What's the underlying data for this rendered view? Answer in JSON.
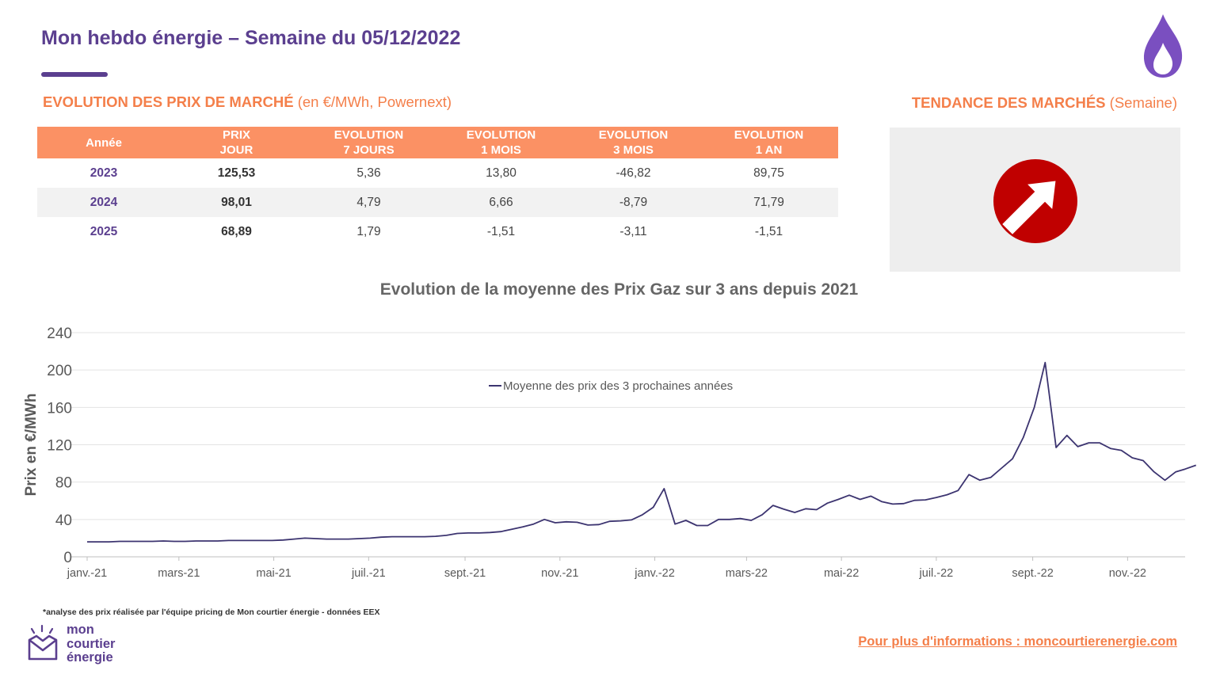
{
  "header": {
    "title": "Mon hebdo énergie – Semaine du 05/12/2022",
    "logo_icon": "flame-icon",
    "accent_color": "#5b3f8f"
  },
  "market_prices": {
    "heading": "EVOLUTION DES PRIX DE MARCHÉ",
    "heading_sub": "(en €/MWh, Powernext)",
    "columns": [
      {
        "line1": "Année",
        "line2": ""
      },
      {
        "line1": "PRIX",
        "line2": "JOUR"
      },
      {
        "line1": "EVOLUTION",
        "line2": "7 JOURS"
      },
      {
        "line1": "EVOLUTION",
        "line2": "1 MOIS"
      },
      {
        "line1": "EVOLUTION",
        "line2": "3 MOIS"
      },
      {
        "line1": "EVOLUTION",
        "line2": "1 AN"
      }
    ],
    "rows": [
      {
        "year": "2023",
        "prix": "125,53",
        "evo7": "5,36",
        "evo1m": "13,80",
        "evo3m": "-46,82",
        "evo1a": "89,75"
      },
      {
        "year": "2024",
        "prix": "98,01",
        "evo7": "4,79",
        "evo1m": "6,66",
        "evo3m": "-8,79",
        "evo1a": "71,79"
      },
      {
        "year": "2025",
        "prix": "68,89",
        "evo7": "1,79",
        "evo1m": "-1,51",
        "evo3m": "-3,11",
        "evo1a": "-1,51"
      }
    ],
    "header_color": "#fb9164"
  },
  "trend": {
    "heading": "TENDANCE DES MARCHÉS",
    "heading_sub": "(Semaine)",
    "icon": "up-right-arrow-icon",
    "direction": "up",
    "color": "#c00000"
  },
  "chart_data": {
    "type": "line",
    "title": "Evolution de la moyenne des Prix Gaz sur 3 ans depuis 2021",
    "ylabel": "Prix en €/MWh",
    "xlabel": "",
    "ylim": [
      0,
      240
    ],
    "yticks": [
      0,
      40,
      80,
      120,
      160,
      200,
      240
    ],
    "xlim": [
      "2021-01-01",
      "2022-12-08"
    ],
    "xticks": [
      {
        "date": "2021-01-01",
        "label": "janv.-21"
      },
      {
        "date": "2021-03-01",
        "label": "mars-21"
      },
      {
        "date": "2021-05-01",
        "label": "mai-21"
      },
      {
        "date": "2021-07-01",
        "label": "juil.-21"
      },
      {
        "date": "2021-09-01",
        "label": "sept.-21"
      },
      {
        "date": "2021-11-01",
        "label": "nov.-21"
      },
      {
        "date": "2022-01-01",
        "label": "janv.-22"
      },
      {
        "date": "2022-03-01",
        "label": "mars-22"
      },
      {
        "date": "2022-05-01",
        "label": "mai-22"
      },
      {
        "date": "2022-07-01",
        "label": "juil.-22"
      },
      {
        "date": "2022-09-01",
        "label": "sept.-22"
      },
      {
        "date": "2022-11-01",
        "label": "nov.-22"
      }
    ],
    "grid": true,
    "legend_position": "top-center",
    "series": [
      {
        "name": "Moyenne des prix des 3 prochaines années",
        "color": "#3c3470",
        "points": [
          [
            "2021-01-01",
            16
          ],
          [
            "2021-01-08",
            16
          ],
          [
            "2021-01-15",
            16
          ],
          [
            "2021-01-22",
            16.5
          ],
          [
            "2021-01-29",
            16.5
          ],
          [
            "2021-02-05",
            16.5
          ],
          [
            "2021-02-12",
            16.5
          ],
          [
            "2021-02-19",
            17
          ],
          [
            "2021-02-26",
            16.5
          ],
          [
            "2021-03-05",
            16.5
          ],
          [
            "2021-03-12",
            17
          ],
          [
            "2021-03-19",
            17
          ],
          [
            "2021-03-26",
            17
          ],
          [
            "2021-04-02",
            17.5
          ],
          [
            "2021-04-09",
            17.5
          ],
          [
            "2021-04-16",
            17.5
          ],
          [
            "2021-04-23",
            17.5
          ],
          [
            "2021-04-30",
            17.5
          ],
          [
            "2021-05-07",
            18
          ],
          [
            "2021-05-14",
            19
          ],
          [
            "2021-05-21",
            20
          ],
          [
            "2021-05-28",
            19.5
          ],
          [
            "2021-06-04",
            19
          ],
          [
            "2021-06-11",
            19
          ],
          [
            "2021-06-18",
            19
          ],
          [
            "2021-06-25",
            19.5
          ],
          [
            "2021-07-02",
            20
          ],
          [
            "2021-07-09",
            21
          ],
          [
            "2021-07-16",
            21.5
          ],
          [
            "2021-07-23",
            21.5
          ],
          [
            "2021-07-30",
            21.5
          ],
          [
            "2021-08-06",
            21.5
          ],
          [
            "2021-08-13",
            22
          ],
          [
            "2021-08-20",
            23
          ],
          [
            "2021-08-27",
            25
          ],
          [
            "2021-09-03",
            25.5
          ],
          [
            "2021-09-10",
            25.5
          ],
          [
            "2021-09-17",
            26
          ],
          [
            "2021-09-24",
            27
          ],
          [
            "2021-10-01",
            29.5
          ],
          [
            "2021-10-08",
            32
          ],
          [
            "2021-10-15",
            35
          ],
          [
            "2021-10-22",
            40
          ],
          [
            "2021-10-29",
            36.5
          ],
          [
            "2021-11-05",
            37.5
          ],
          [
            "2021-11-12",
            37
          ],
          [
            "2021-11-19",
            34
          ],
          [
            "2021-11-26",
            34.5
          ],
          [
            "2021-12-03",
            38
          ],
          [
            "2021-12-10",
            38.5
          ],
          [
            "2021-12-17",
            39.5
          ],
          [
            "2021-12-24",
            45
          ],
          [
            "2021-12-31",
            53
          ],
          [
            "2022-01-07",
            73
          ],
          [
            "2022-01-14",
            35
          ],
          [
            "2022-01-21",
            39
          ],
          [
            "2022-01-28",
            33.5
          ],
          [
            "2022-02-04",
            33.5
          ],
          [
            "2022-02-11",
            40
          ],
          [
            "2022-02-18",
            40
          ],
          [
            "2022-02-25",
            41
          ],
          [
            "2022-03-04",
            39
          ],
          [
            "2022-03-11",
            45
          ],
          [
            "2022-03-18",
            55
          ],
          [
            "2022-03-25",
            51
          ],
          [
            "2022-04-01",
            47.5
          ],
          [
            "2022-04-08",
            51.5
          ],
          [
            "2022-04-15",
            50.5
          ],
          [
            "2022-04-22",
            57.5
          ],
          [
            "2022-04-29",
            61.5
          ],
          [
            "2022-05-06",
            66
          ],
          [
            "2022-05-13",
            61.5
          ],
          [
            "2022-05-20",
            65
          ],
          [
            "2022-05-27",
            59
          ],
          [
            "2022-06-03",
            56.5
          ],
          [
            "2022-06-10",
            57
          ],
          [
            "2022-06-17",
            60.5
          ],
          [
            "2022-06-24",
            61
          ],
          [
            "2022-07-01",
            63.5
          ],
          [
            "2022-07-08",
            66.5
          ],
          [
            "2022-07-15",
            71
          ],
          [
            "2022-07-22",
            88
          ],
          [
            "2022-07-29",
            82
          ],
          [
            "2022-08-05",
            85
          ],
          [
            "2022-08-12",
            95
          ],
          [
            "2022-08-19",
            105
          ],
          [
            "2022-08-26",
            128
          ],
          [
            "2022-09-02",
            160
          ],
          [
            "2022-09-09",
            208
          ],
          [
            "2022-09-16",
            117
          ],
          [
            "2022-09-23",
            130
          ],
          [
            "2022-09-30",
            118
          ],
          [
            "2022-10-07",
            122
          ],
          [
            "2022-10-14",
            122
          ],
          [
            "2022-10-21",
            116
          ],
          [
            "2022-10-28",
            114
          ],
          [
            "2022-11-04",
            106
          ],
          [
            "2022-11-11",
            103
          ],
          [
            "2022-11-18",
            91
          ],
          [
            "2022-11-25",
            82
          ],
          [
            "2022-12-02",
            91
          ],
          [
            "2022-12-08",
            94
          ],
          [
            "2022-12-15",
            98
          ]
        ]
      }
    ]
  },
  "footer": {
    "footnote": "*analyse des prix réalisée par l'équipe pricing de Mon courtier énergie -  données EEX",
    "brand_line1": "mon",
    "brand_line2": "courtier",
    "brand_line3": "énergie",
    "brand_icon": "envelope-heart-icon",
    "link_text": "Pour plus d'informations : moncourtierenergie.com",
    "link_color": "#f47f4a"
  }
}
